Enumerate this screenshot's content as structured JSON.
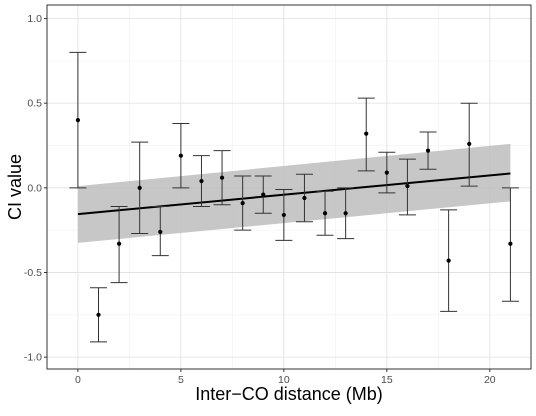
{
  "chart_data": {
    "type": "scatter",
    "title": "",
    "xlabel": "Inter−CO distance (Mb)",
    "ylabel": "CI value",
    "xlim": [
      -1.5,
      22
    ],
    "ylim": [
      -1.07,
      1.08
    ],
    "xticks": [
      0,
      5,
      10,
      15,
      20
    ],
    "xtick_labels": [
      "0",
      "5",
      "10",
      "15",
      "20"
    ],
    "yticks": [
      -1.0,
      -0.5,
      0.0,
      0.5,
      1.0
    ],
    "ytick_labels": [
      "-1.0",
      "-0.5",
      "0.0",
      "0.5",
      "1.0"
    ],
    "grid": true,
    "points": [
      {
        "x": 0,
        "y": 0.4,
        "lo": 0.0,
        "hi": 0.8
      },
      {
        "x": 1,
        "y": -0.75,
        "lo": -0.91,
        "hi": -0.59
      },
      {
        "x": 2,
        "y": -0.33,
        "lo": -0.56,
        "hi": -0.11
      },
      {
        "x": 3,
        "y": 0.0,
        "lo": -0.27,
        "hi": 0.27
      },
      {
        "x": 4,
        "y": -0.26,
        "lo": -0.4,
        "hi": -0.11
      },
      {
        "x": 5,
        "y": 0.19,
        "lo": 0.0,
        "hi": 0.38
      },
      {
        "x": 6,
        "y": 0.04,
        "lo": -0.11,
        "hi": 0.19
      },
      {
        "x": 7,
        "y": 0.06,
        "lo": -0.1,
        "hi": 0.22
      },
      {
        "x": 8,
        "y": -0.09,
        "lo": -0.25,
        "hi": 0.07
      },
      {
        "x": 9,
        "y": -0.04,
        "lo": -0.15,
        "hi": 0.07
      },
      {
        "x": 10,
        "y": -0.16,
        "lo": -0.31,
        "hi": -0.01
      },
      {
        "x": 11,
        "y": -0.06,
        "lo": -0.2,
        "hi": 0.08
      },
      {
        "x": 12,
        "y": -0.15,
        "lo": -0.28,
        "hi": -0.02
      },
      {
        "x": 13,
        "y": -0.15,
        "lo": -0.3,
        "hi": 0.0
      },
      {
        "x": 14,
        "y": 0.32,
        "lo": 0.1,
        "hi": 0.53
      },
      {
        "x": 15,
        "y": 0.09,
        "lo": -0.03,
        "hi": 0.21
      },
      {
        "x": 16,
        "y": 0.01,
        "lo": -0.16,
        "hi": 0.17
      },
      {
        "x": 17,
        "y": 0.22,
        "lo": 0.11,
        "hi": 0.33
      },
      {
        "x": 18,
        "y": -0.43,
        "lo": -0.73,
        "hi": -0.13
      },
      {
        "x": 19,
        "y": 0.26,
        "lo": 0.01,
        "hi": 0.5
      },
      {
        "x": 21,
        "y": -0.33,
        "lo": -0.67,
        "hi": 0.0
      }
    ],
    "trend": {
      "type": "linear",
      "x": [
        0,
        21
      ],
      "y": [
        -0.155,
        0.085
      ],
      "ci_lower": [
        -0.325,
        -0.08
      ],
      "ci_upper": [
        0.01,
        0.26
      ],
      "line_color": "#000000",
      "band_color": "#bdbdbd"
    },
    "point_color": "#000000",
    "errorbar_color": "#333333"
  }
}
